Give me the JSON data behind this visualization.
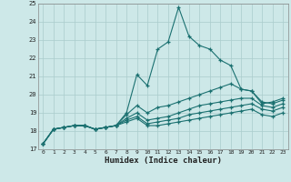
{
  "xlabel": "Humidex (Indice chaleur)",
  "xlim": [
    -0.5,
    23.5
  ],
  "ylim": [
    17,
    25
  ],
  "yticks": [
    17,
    18,
    19,
    20,
    21,
    22,
    23,
    24,
    25
  ],
  "xticks": [
    0,
    1,
    2,
    3,
    4,
    5,
    6,
    7,
    8,
    9,
    10,
    11,
    12,
    13,
    14,
    15,
    16,
    17,
    18,
    19,
    20,
    21,
    22,
    23
  ],
  "bg_color": "#cde8e8",
  "grid_color": "#aacccc",
  "line_color": "#1a7070",
  "series": [
    [
      17.3,
      18.1,
      18.2,
      18.3,
      18.3,
      18.1,
      18.2,
      18.3,
      19.0,
      21.1,
      20.5,
      22.5,
      22.9,
      24.8,
      23.2,
      22.7,
      22.5,
      21.9,
      21.6,
      20.3,
      20.2,
      19.5,
      19.6,
      19.8
    ],
    [
      17.3,
      18.1,
      18.2,
      18.3,
      18.3,
      18.1,
      18.2,
      18.3,
      18.9,
      19.4,
      19.0,
      19.3,
      19.4,
      19.6,
      19.8,
      20.0,
      20.2,
      20.4,
      20.6,
      20.3,
      20.2,
      19.6,
      19.5,
      19.7
    ],
    [
      17.3,
      18.1,
      18.2,
      18.3,
      18.3,
      18.1,
      18.2,
      18.3,
      18.7,
      19.0,
      18.6,
      18.7,
      18.8,
      19.0,
      19.2,
      19.4,
      19.5,
      19.6,
      19.7,
      19.8,
      19.8,
      19.4,
      19.3,
      19.5
    ],
    [
      17.3,
      18.1,
      18.2,
      18.3,
      18.3,
      18.1,
      18.2,
      18.3,
      18.6,
      18.8,
      18.4,
      18.5,
      18.6,
      18.7,
      18.9,
      19.0,
      19.1,
      19.2,
      19.3,
      19.4,
      19.5,
      19.2,
      19.1,
      19.3
    ],
    [
      17.3,
      18.1,
      18.2,
      18.3,
      18.3,
      18.1,
      18.2,
      18.3,
      18.5,
      18.7,
      18.3,
      18.3,
      18.4,
      18.5,
      18.6,
      18.7,
      18.8,
      18.9,
      19.0,
      19.1,
      19.2,
      18.9,
      18.8,
      19.0
    ]
  ]
}
